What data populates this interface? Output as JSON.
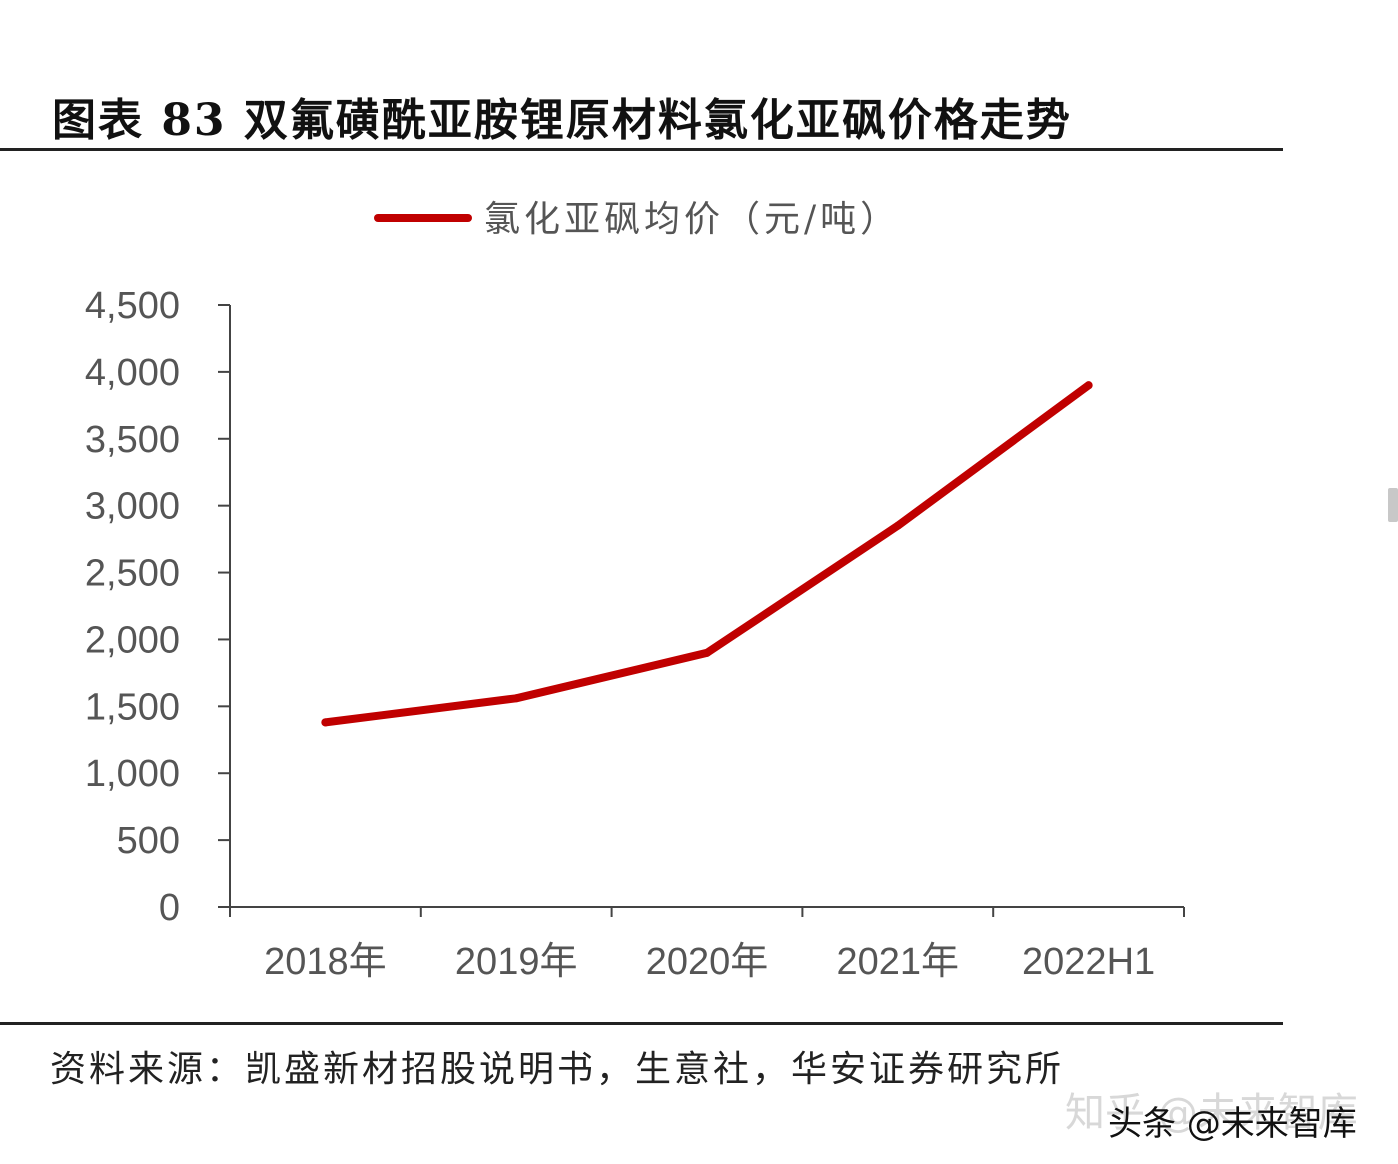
{
  "title": "图表 83  双氟磺酰亚胺锂原材料氯化亚砜价格走势",
  "source": "资料来源：凯盛新材招股说明书，生意社，华安证券研究所",
  "watermark_light": "知乎 @未来智库",
  "watermark_dark": "头条 @未来智库",
  "chart_data": {
    "type": "line",
    "categories": [
      "2018年",
      "2019年",
      "2020年",
      "2021年",
      "2022H1"
    ],
    "series": [
      {
        "name": "氯化亚砜均价（元/吨）",
        "values": [
          1380,
          1560,
          1900,
          2850,
          3900
        ],
        "color": "#c00000"
      }
    ],
    "yticks": [
      "0",
      "500",
      "1,000",
      "1,500",
      "2,000",
      "2,500",
      "3,000",
      "3,500",
      "4,000",
      "4,500"
    ],
    "ylim": [
      0,
      4500
    ],
    "grid": false,
    "legend": "top-center"
  }
}
